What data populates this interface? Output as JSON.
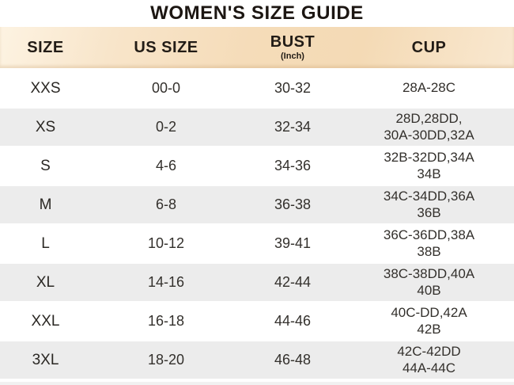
{
  "title": "WOMEN'S SIZE GUIDE",
  "header": {
    "size": "SIZE",
    "us_size": "US SIZE",
    "bust": "BUST",
    "bust_unit": "(Inch)",
    "cup": "CUP"
  },
  "rows": [
    {
      "size": "XXS",
      "us_size": "00-0",
      "bust": "30-32",
      "cup": "28A-28C"
    },
    {
      "size": "XS",
      "us_size": "0-2",
      "bust": "32-34",
      "cup": "28D,28DD,\n30A-30DD,32A"
    },
    {
      "size": "S",
      "us_size": "4-6",
      "bust": "34-36",
      "cup": "32B-32DD,34A\n34B"
    },
    {
      "size": "M",
      "us_size": "6-8",
      "bust": "36-38",
      "cup": "34C-34DD,36A\n36B"
    },
    {
      "size": "L",
      "us_size": "10-12",
      "bust": "39-41",
      "cup": "36C-36DD,38A\n38B"
    },
    {
      "size": "XL",
      "us_size": "14-16",
      "bust": "42-44",
      "cup": "38C-38DD,40A\n40B"
    },
    {
      "size": "XXL",
      "us_size": "16-18",
      "bust": "44-46",
      "cup": "40C-DD,42A\n42B"
    },
    {
      "size": "3XL",
      "us_size": "18-20",
      "bust": "46-48",
      "cup": "42C-42DD\n44A-44C"
    }
  ],
  "colors": {
    "header_band_tan": "#f5dcb9",
    "header_band_light": "#fdf3e2",
    "shaded_row_gray": "#ececec",
    "text_dark": "#1c1612",
    "body_text": "#33302c"
  },
  "chart_data": {
    "type": "table",
    "title": "WOMEN'S SIZE GUIDE",
    "columns": [
      "SIZE",
      "US SIZE",
      "BUST (Inch)",
      "CUP"
    ],
    "rows": [
      [
        "XXS",
        "00-0",
        "30-32",
        "28A-28C"
      ],
      [
        "XS",
        "0-2",
        "32-34",
        "28D,28DD,30A-30DD,32A"
      ],
      [
        "S",
        "4-6",
        "34-36",
        "32B-32DD,34A 34B"
      ],
      [
        "M",
        "6-8",
        "36-38",
        "34C-34DD,36A 36B"
      ],
      [
        "L",
        "10-12",
        "39-41",
        "36C-36DD,38A 38B"
      ],
      [
        "XL",
        "14-16",
        "42-44",
        "38C-38DD,40A 40B"
      ],
      [
        "XXL",
        "16-18",
        "44-46",
        "40C-DD,42A 42B"
      ],
      [
        "3XL",
        "18-20",
        "46-48",
        "42C-42DD 44A-44C"
      ]
    ]
  }
}
